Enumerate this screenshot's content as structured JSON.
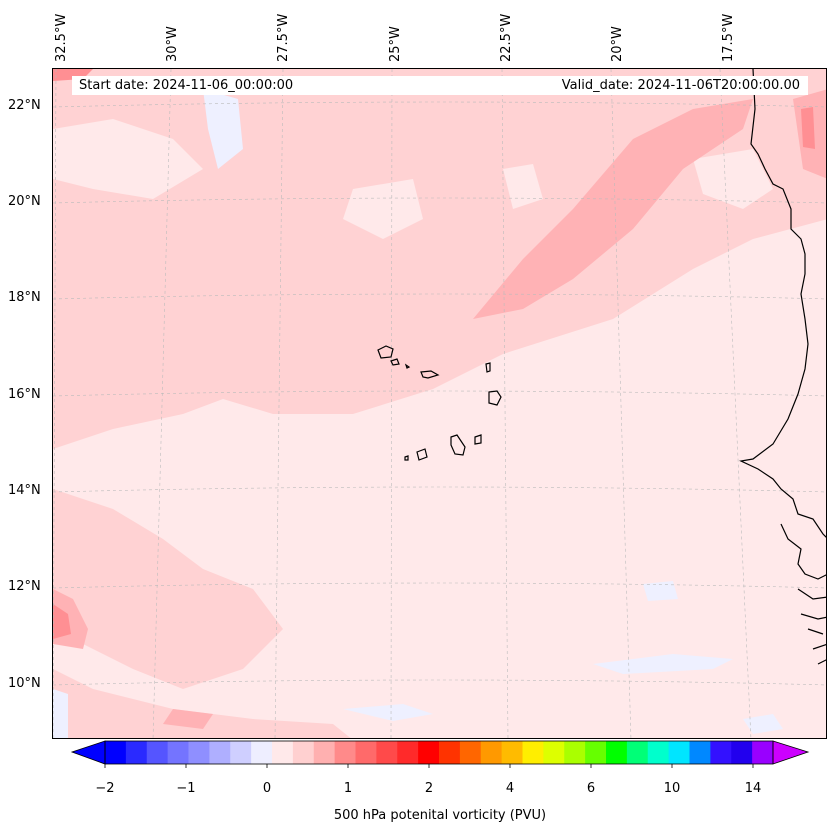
{
  "header": {
    "start_date": "Start date: 2024-11-06_00:00:00",
    "valid_date": "Valid_date: 2024-11-06T20:00:00.00"
  },
  "lon_labels": [
    "32.5°W",
    "30°W",
    "27.5°W",
    "25°W",
    "22.5°W",
    "20°W",
    "17.5°W"
  ],
  "lat_labels": [
    "22°N",
    "20°N",
    "18°N",
    "16°N",
    "14°N",
    "12°N",
    "10°N"
  ],
  "colorbar": {
    "label": "500 hPa potenital vorticity (PVU)",
    "ticks": [
      "−2",
      "−1",
      "0",
      "1",
      "2",
      "4",
      "6",
      "10",
      "14"
    ],
    "colors": [
      "#0000ff",
      "#2a2aff",
      "#5555ff",
      "#7474ff",
      "#8f8fff",
      "#afafff",
      "#cfcfff",
      "#eeeeff",
      "#ffe9ea",
      "#ffd0d0",
      "#ffb0b0",
      "#ff8a8a",
      "#ff6a6a",
      "#ff4a4a",
      "#ff2a2a",
      "#ff0000",
      "#ff3300",
      "#ff6600",
      "#ff9900",
      "#ffbb00",
      "#ffee00",
      "#ddff00",
      "#aaff00",
      "#66ff00",
      "#00ff00",
      "#00ff77",
      "#00ffcc",
      "#00e5ff",
      "#0088ff",
      "#3311ff",
      "#2200ee",
      "#9900ff"
    ],
    "under_color": "#0000ff",
    "over_color": "#cc00ff"
  },
  "map": {
    "background_color": "#ffe9ea",
    "light_fill": "#ffd2d3",
    "medium_fill": "#ffb2b5",
    "strong_fill": "#ff8f93",
    "blue_fill": "#eef0ff",
    "coast_color": "#000000"
  }
}
